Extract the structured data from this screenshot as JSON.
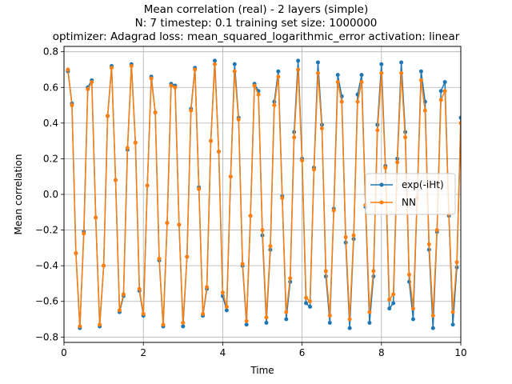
{
  "chart_data": {
    "type": "line",
    "title_lines": [
      "Mean correlation (real) - 2 layers (simple)",
      "N: 7 timestep: 0.1 training set size: 1000000",
      "optimizer: Adagrad loss: mean_squared_logarithmic_error activation: linear"
    ],
    "xlabel": "Time",
    "ylabel": "Mean correlation",
    "xlim": [
      0,
      10
    ],
    "ylim": [
      -0.83,
      0.83
    ],
    "xticks": [
      0,
      2,
      4,
      6,
      8,
      10
    ],
    "yticks": [
      -0.8,
      -0.6,
      -0.4,
      -0.2,
      0.0,
      0.2,
      0.4,
      0.6,
      0.8
    ],
    "xtick_labels": [
      "0",
      "2",
      "4",
      "6",
      "8",
      "10"
    ],
    "ytick_labels": [
      "−0.8",
      "−0.6",
      "−0.4",
      "−0.2",
      "0.0",
      "0.2",
      "0.4",
      "0.6",
      "0.8"
    ],
    "grid": true,
    "legend_position": "center-right",
    "x": [
      0.1,
      0.2,
      0.3,
      0.4,
      0.5,
      0.6,
      0.7,
      0.8,
      0.9,
      1.0,
      1.1,
      1.2,
      1.3,
      1.4,
      1.5,
      1.6,
      1.7,
      1.8,
      1.9,
      2.0,
      2.1,
      2.2,
      2.3,
      2.4,
      2.5,
      2.6,
      2.7,
      2.8,
      2.9,
      3.0,
      3.1,
      3.2,
      3.3,
      3.4,
      3.5,
      3.6,
      3.7,
      3.8,
      3.9,
      4.0,
      4.1,
      4.2,
      4.3,
      4.4,
      4.5,
      4.6,
      4.7,
      4.8,
      4.9,
      5.0,
      5.1,
      5.2,
      5.3,
      5.4,
      5.5,
      5.6,
      5.7,
      5.8,
      5.9,
      6.0,
      6.1,
      6.2,
      6.3,
      6.4,
      6.5,
      6.6,
      6.7,
      6.8,
      6.9,
      7.0,
      7.1,
      7.2,
      7.3,
      7.4,
      7.5,
      7.6,
      7.7,
      7.8,
      7.9,
      8.0,
      8.1,
      8.2,
      8.3,
      8.4,
      8.5,
      8.6,
      8.7,
      8.8,
      8.9,
      9.0,
      9.1,
      9.2,
      9.3,
      9.4,
      9.5,
      9.6,
      9.7,
      9.8,
      9.9,
      10.0
    ],
    "series": [
      {
        "name": "exp(-iHt)",
        "color": "#1f77b4",
        "values": [
          0.69,
          0.51,
          -0.33,
          -0.75,
          -0.21,
          0.6,
          0.64,
          -0.13,
          -0.74,
          -0.4,
          0.44,
          0.72,
          0.08,
          -0.66,
          -0.57,
          0.25,
          0.73,
          0.29,
          -0.54,
          -0.68,
          0.05,
          0.66,
          0.46,
          -0.37,
          -0.74,
          -0.16,
          0.62,
          0.61,
          -0.17,
          -0.74,
          -0.35,
          0.48,
          0.71,
          0.04,
          -0.68,
          -0.53,
          0.3,
          0.75,
          0.24,
          -0.57,
          -0.65,
          0.1,
          0.73,
          0.43,
          -0.4,
          -0.73,
          -0.12,
          0.62,
          0.58,
          -0.23,
          -0.72,
          -0.31,
          0.52,
          0.69,
          -0.01,
          -0.7,
          -0.49,
          0.35,
          0.75,
          0.2,
          -0.61,
          -0.63,
          0.15,
          0.74,
          0.39,
          -0.46,
          -0.72,
          -0.08,
          0.67,
          0.55,
          -0.27,
          -0.75,
          -0.25,
          0.56,
          0.67,
          -0.07,
          -0.72,
          -0.46,
          0.39,
          0.73,
          0.16,
          -0.64,
          -0.61,
          0.2,
          0.74,
          0.35,
          -0.49,
          -0.7,
          -0.02,
          0.69,
          0.52,
          -0.31,
          -0.75,
          -0.21,
          0.58,
          0.63,
          -0.12,
          -0.73,
          -0.41,
          0.43
        ]
      },
      {
        "name": "NN",
        "color": "#ff7f0e",
        "values": [
          0.7,
          0.5,
          -0.33,
          -0.74,
          -0.22,
          0.59,
          0.63,
          -0.13,
          -0.73,
          -0.4,
          0.44,
          0.71,
          0.08,
          -0.65,
          -0.56,
          0.26,
          0.72,
          0.29,
          -0.53,
          -0.67,
          0.05,
          0.65,
          0.46,
          -0.36,
          -0.73,
          -0.16,
          0.61,
          0.6,
          -0.17,
          -0.72,
          -0.35,
          0.47,
          0.7,
          0.03,
          -0.67,
          -0.52,
          0.3,
          0.73,
          0.24,
          -0.55,
          -0.63,
          0.1,
          0.69,
          0.42,
          -0.39,
          -0.71,
          -0.12,
          0.61,
          0.56,
          -0.2,
          -0.69,
          -0.29,
          0.5,
          0.66,
          -0.02,
          -0.66,
          -0.47,
          0.32,
          0.7,
          0.19,
          -0.58,
          -0.6,
          0.14,
          0.68,
          0.37,
          -0.43,
          -0.68,
          -0.09,
          0.63,
          0.52,
          -0.24,
          -0.7,
          -0.23,
          0.52,
          0.63,
          -0.06,
          -0.66,
          -0.43,
          0.36,
          0.68,
          0.15,
          -0.59,
          -0.56,
          0.18,
          0.68,
          0.32,
          -0.45,
          -0.64,
          -0.02,
          0.64,
          0.47,
          -0.28,
          -0.68,
          -0.2,
          0.53,
          0.58,
          -0.11,
          -0.66,
          -0.38,
          0.4
        ]
      }
    ]
  }
}
